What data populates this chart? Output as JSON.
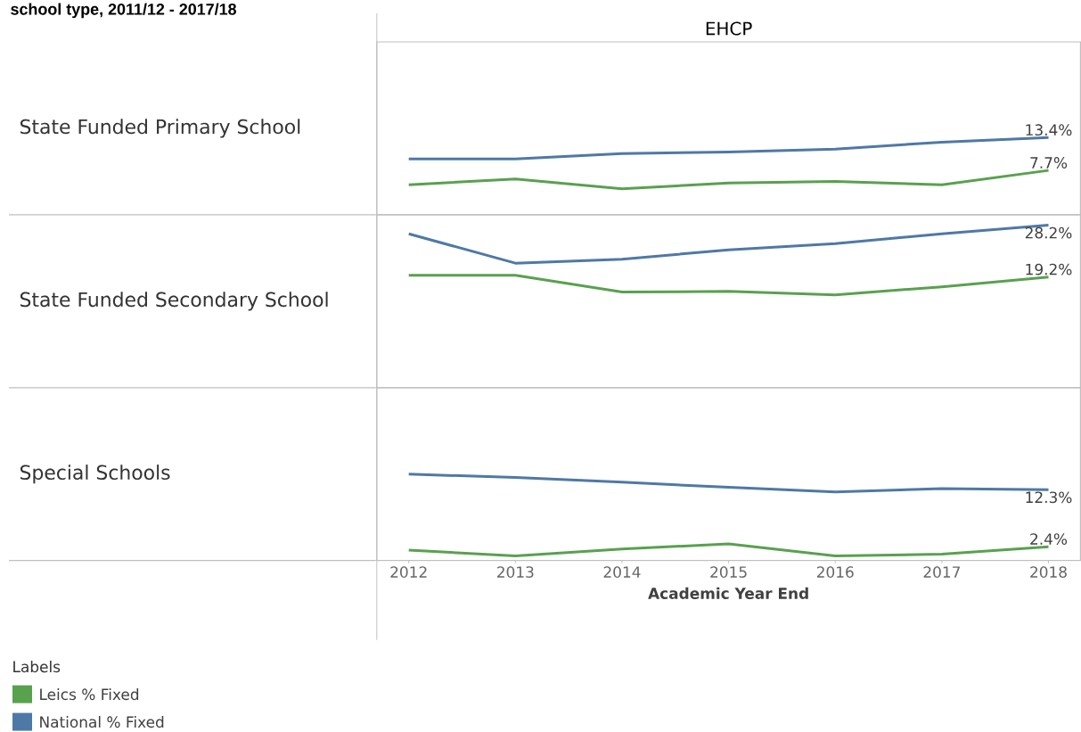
{
  "chart_data": [
    {
      "type": "line",
      "title": "EHCP",
      "ylabel": "State Funded Primary School",
      "annotations": [
        "school type, 2011/12 - 2017/18"
      ],
      "x": [
        2012,
        2013,
        2014,
        2015,
        2016,
        2017,
        2018
      ],
      "xlim": [
        2011.7,
        2018.3
      ],
      "ylim": [
        0,
        30
      ],
      "tick_labels": false,
      "series": [
        {
          "color": "#4e79a7",
          "values": [
            9.7,
            9.7,
            10.6,
            10.9,
            11.4,
            12.6,
            13.4
          ],
          "value_labels": [
            null,
            null,
            null,
            null,
            null,
            null,
            "13.4%"
          ]
        },
        {
          "color": "#59a14f",
          "values": [
            5.2,
            6.2,
            4.5,
            5.5,
            5.8,
            5.2,
            7.7
          ],
          "value_labels": [
            null,
            null,
            null,
            null,
            null,
            null,
            "7.7%"
          ]
        }
      ]
    },
    {
      "type": "line",
      "ylabel": "State Funded Secondary School",
      "x": [
        2012,
        2013,
        2014,
        2015,
        2016,
        2017,
        2018
      ],
      "xlim": [
        2011.7,
        2018.3
      ],
      "ylim": [
        0,
        30
      ],
      "tick_labels": false,
      "series": [
        {
          "color": "#4e79a7",
          "values": [
            26.7,
            21.6,
            22.3,
            23.9,
            25.0,
            26.7,
            28.2
          ],
          "value_labels": [
            null,
            null,
            null,
            null,
            null,
            null,
            "28.2%"
          ]
        },
        {
          "color": "#59a14f",
          "values": [
            19.5,
            19.5,
            16.6,
            16.7,
            16.1,
            17.5,
            19.2
          ],
          "value_labels": [
            null,
            null,
            null,
            null,
            null,
            null,
            "19.2%"
          ]
        }
      ]
    },
    {
      "type": "line",
      "ylabel": "Special Schools",
      "xlabel": "Academic Year End",
      "x": [
        2012,
        2013,
        2014,
        2015,
        2016,
        2017,
        2018
      ],
      "xlim": [
        2011.7,
        2018.3
      ],
      "xticks": [
        2012,
        2013,
        2014,
        2015,
        2016,
        2017,
        2018
      ],
      "ylim": [
        0,
        30
      ],
      "tick_labels": "x",
      "legend": "bottom left",
      "legend_title": "Labels",
      "series": [
        {
          "name": "National % Fixed",
          "color": "#4e79a7",
          "values": [
            15.0,
            14.4,
            13.6,
            12.7,
            11.9,
            12.5,
            12.3
          ],
          "value_labels": [
            null,
            null,
            null,
            null,
            null,
            null,
            "12.3%"
          ]
        },
        {
          "name": "Leics % Fixed",
          "color": "#59a14f",
          "values": [
            1.8,
            0.8,
            2.0,
            2.9,
            0.8,
            1.1,
            2.4
          ],
          "value_labels": [
            null,
            null,
            null,
            null,
            null,
            null,
            "2.4%"
          ]
        }
      ]
    }
  ]
}
